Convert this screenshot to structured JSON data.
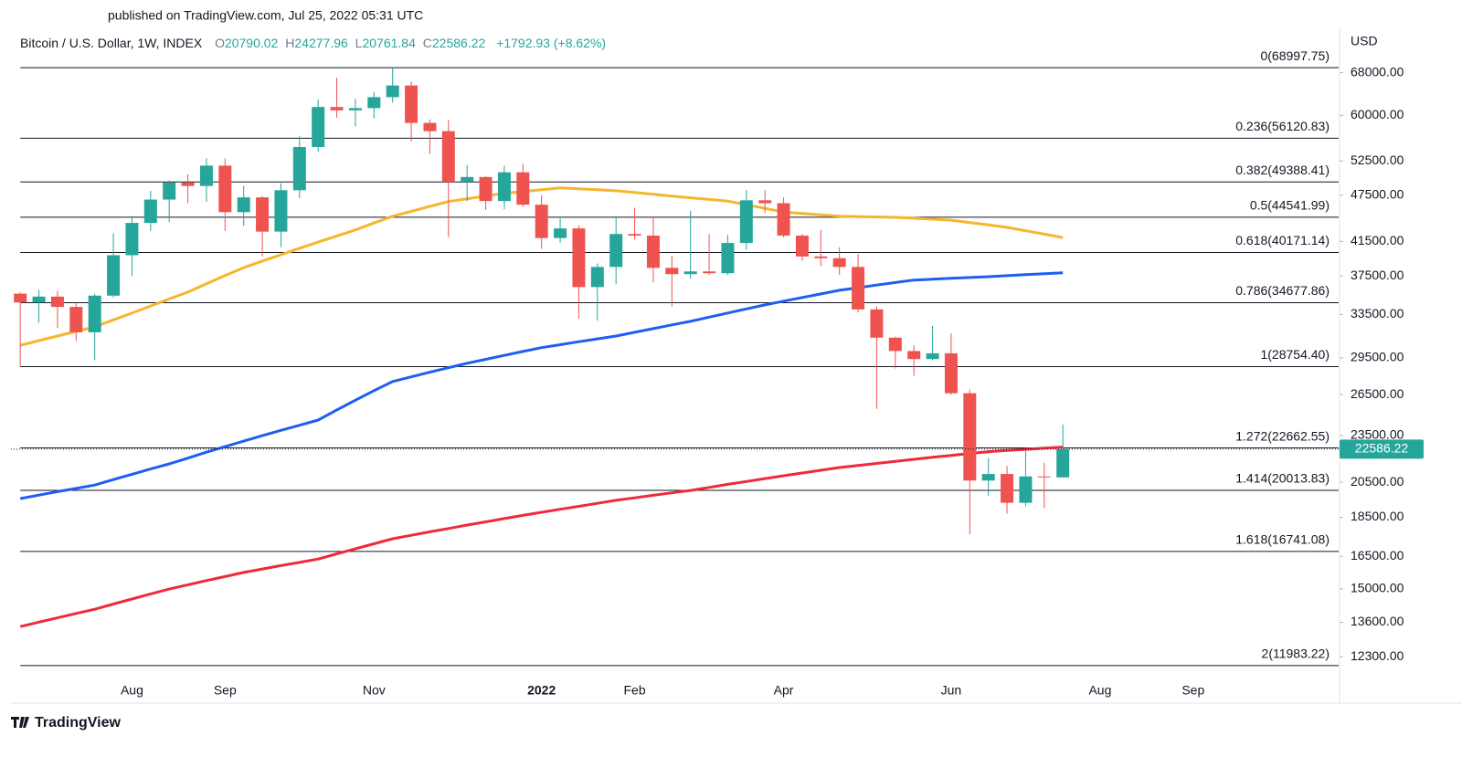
{
  "published": "published on TradingView.com, Jul 25, 2022 05:31 UTC",
  "footer": "TradingView",
  "chart_data": {
    "type": "candlestick",
    "title": "Bitcoin / U.S. Dollar, 1W, INDEX",
    "ohlc_keys": [
      "O",
      "H",
      "L",
      "C"
    ],
    "change_label": "+1792.93 (+8.62%)",
    "y_unit": "USD",
    "log_scale": true,
    "grid": false,
    "up_color": "#26a69a",
    "down_color": "#ef5350",
    "categories": [
      null,
      null,
      null,
      null,
      null,
      null,
      "Aug",
      null,
      null,
      null,
      null,
      "Sep",
      null,
      null,
      null,
      null,
      null,
      null,
      null,
      "Nov",
      null,
      null,
      null,
      null,
      null,
      null,
      null,
      null,
      "2022",
      null,
      null,
      null,
      null,
      "Feb",
      null,
      null,
      null,
      null,
      null,
      null,
      null,
      "Apr",
      null,
      null,
      null,
      null,
      null,
      null,
      null,
      null,
      "Jun",
      null,
      null,
      null,
      null,
      null,
      null,
      null,
      "Aug",
      null,
      null,
      null,
      null,
      "Sep",
      null,
      null,
      null,
      null,
      null,
      null,
      null
    ],
    "open": [
      35600,
      34700,
      35300,
      34250,
      31800,
      35400,
      39850,
      43800,
      46900,
      49300,
      48800,
      51800,
      45200,
      47200,
      42700,
      48200,
      54700,
      61500,
      60900,
      61300,
      63300,
      65500,
      58700,
      57300,
      49400,
      50100,
      46700,
      50800,
      46200,
      41900,
      43100,
      36300,
      38500,
      42400,
      42200,
      38400,
      37700,
      38000,
      37800,
      41300,
      46800,
      46400,
      42200,
      39700,
      39500,
      38500,
      34000,
      31300,
      30100,
      29400,
      29900,
      26600,
      20600,
      21000,
      19300,
      20850,
      20790.02,
      null,
      null,
      null,
      null,
      null,
      null,
      null,
      null,
      null,
      null,
      null,
      null,
      null,
      null
    ],
    "high": [
      35750,
      36000,
      35900,
      34600,
      35600,
      42500,
      44700,
      48100,
      49600,
      50500,
      52900,
      52900,
      48800,
      47400,
      49200,
      56500,
      62900,
      67000,
      63000,
      64300,
      69000,
      66300,
      59300,
      59200,
      51900,
      50200,
      51800,
      52100,
      47500,
      44400,
      43500,
      38900,
      44500,
      45800,
      44700,
      39800,
      45400,
      42400,
      42300,
      48200,
      48200,
      47200,
      42400,
      42900,
      40800,
      40000,
      34300,
      31400,
      30600,
      32400,
      31700,
      26900,
      22000,
      21500,
      22500,
      21700,
      24277.96,
      null,
      null,
      null,
      null,
      null,
      null,
      null,
      null,
      null,
      null,
      null,
      null,
      null,
      null
    ],
    "low": [
      28800,
      32700,
      32200,
      31000,
      29300,
      35200,
      37500,
      42800,
      43900,
      46400,
      46600,
      42800,
      43400,
      39700,
      40800,
      47100,
      53900,
      59600,
      58100,
      59500,
      62300,
      55600,
      53600,
      42000,
      46700,
      45500,
      45600,
      45900,
      40600,
      41300,
      33100,
      32900,
      36600,
      41700,
      36800,
      34300,
      37200,
      37600,
      37600,
      40500,
      45100,
      42000,
      39200,
      38600,
      37600,
      33700,
      25400,
      28600,
      28000,
      29300,
      26500,
      17600,
      19700,
      18700,
      19100,
      19000,
      20761.84,
      null,
      null,
      null,
      null,
      null,
      null,
      null,
      null,
      null,
      null,
      null,
      null,
      null,
      null
    ],
    "close": [
      34700,
      35300,
      34250,
      31800,
      35400,
      39850,
      43800,
      46900,
      49300,
      48800,
      51800,
      45200,
      47200,
      42700,
      48200,
      54700,
      61500,
      60900,
      61300,
      63300,
      65500,
      58700,
      57300,
      49400,
      50100,
      46700,
      50800,
      46200,
      41900,
      43100,
      36300,
      38500,
      42400,
      42200,
      38400,
      37700,
      38000,
      37800,
      41300,
      46800,
      46400,
      42200,
      39700,
      39500,
      38500,
      34000,
      31300,
      30100,
      29400,
      29900,
      26600,
      20600,
      21000,
      19300,
      20850,
      20800,
      22586.22,
      null,
      null,
      null,
      null,
      null,
      null,
      null,
      null,
      null,
      null,
      null,
      null,
      null,
      null
    ],
    "moving_averages": [
      {
        "color": "#f7b52c",
        "values": [
          30600,
          31030,
          31450,
          31880,
          32300,
          32970,
          33630,
          34340,
          35060,
          35770,
          36650,
          37540,
          38420,
          39170,
          39910,
          40660,
          41410,
          42160,
          42910,
          43790,
          44660,
          45320,
          45970,
          46630,
          47010,
          47380,
          47760,
          48010,
          48270,
          48520,
          48390,
          48260,
          48130,
          47880,
          47620,
          47370,
          47140,
          46920,
          46690,
          46200,
          45710,
          45220,
          45030,
          44850,
          44660,
          44610,
          44570,
          44520,
          44400,
          44280,
          44160,
          43850,
          43540,
          43230,
          42810,
          42380,
          41960,
          null,
          null,
          null,
          null,
          null,
          null,
          null,
          null,
          null,
          null,
          null,
          null,
          null,
          null
        ]
      },
      {
        "color": "#1e5ef0",
        "values": [
          19540,
          19740,
          19940,
          20130,
          20330,
          20660,
          20980,
          21310,
          21630,
          22000,
          22380,
          22750,
          23120,
          23490,
          23860,
          24220,
          24590,
          25330,
          26060,
          26800,
          27530,
          27910,
          28290,
          28660,
          29040,
          29380,
          29720,
          30060,
          30400,
          30660,
          30930,
          31190,
          31450,
          31800,
          32140,
          32490,
          32830,
          33240,
          33640,
          34050,
          34450,
          34830,
          35210,
          35580,
          35960,
          36230,
          36510,
          36780,
          37050,
          37140,
          37240,
          37330,
          37420,
          37530,
          37640,
          37740,
          37850,
          null,
          null,
          null,
          null,
          null,
          null,
          null,
          null,
          null,
          null,
          null,
          null,
          null,
          null
        ]
      },
      {
        "color": "#ee2a3b",
        "values": [
          13430,
          13610,
          13780,
          13960,
          14130,
          14350,
          14560,
          14780,
          14990,
          15180,
          15370,
          15550,
          15740,
          15900,
          16060,
          16210,
          16370,
          16620,
          16870,
          17120,
          17370,
          17550,
          17730,
          17900,
          18080,
          18250,
          18430,
          18600,
          18770,
          18940,
          19100,
          19270,
          19440,
          19580,
          19730,
          19870,
          20010,
          20190,
          20370,
          20540,
          20720,
          20890,
          21060,
          21230,
          21400,
          21530,
          21660,
          21790,
          21920,
          22050,
          22170,
          22300,
          22420,
          22500,
          22570,
          22650,
          22720,
          null,
          null,
          null,
          null,
          null,
          null,
          null,
          null,
          null,
          null,
          null,
          null,
          null,
          null
        ]
      }
    ],
    "fib_levels": [
      {
        "value": 68997.75,
        "label": "0(68997.75)"
      },
      {
        "value": 56120.83,
        "label": "0.236(56120.83)"
      },
      {
        "value": 49388.41,
        "label": "0.382(49388.41)"
      },
      {
        "value": 44541.99,
        "label": "0.5(44541.99)"
      },
      {
        "value": 40171.14,
        "label": "0.618(40171.14)"
      },
      {
        "value": 34677.86,
        "label": "0.786(34677.86)"
      },
      {
        "value": 28754.4,
        "label": "1(28754.40)"
      },
      {
        "value": 22662.55,
        "label": "1.272(22662.55)"
      },
      {
        "value": 20013.83,
        "label": "1.414(20013.83)"
      },
      {
        "value": 16741.08,
        "label": "1.618(16741.08)"
      },
      {
        "value": 11983.22,
        "label": "2(11983.22)"
      }
    ],
    "ylim": [
      11570,
      76000
    ],
    "yticks": [
      {
        "value": 68000,
        "label": "68000.00"
      },
      {
        "value": 60000,
        "label": "60000.00"
      },
      {
        "value": 52500,
        "label": "52500.00"
      },
      {
        "value": 47500,
        "label": "47500.00"
      },
      {
        "value": 41500,
        "label": "41500.00"
      },
      {
        "value": 37500,
        "label": "37500.00"
      },
      {
        "value": 33500,
        "label": "33500.00"
      },
      {
        "value": 29500,
        "label": "29500.00"
      },
      {
        "value": 26500,
        "label": "26500.00"
      },
      {
        "value": 23500,
        "label": "23500.00"
      },
      {
        "value": 20500,
        "label": "20500.00"
      },
      {
        "value": 18500,
        "label": "18500.00"
      },
      {
        "value": 16500,
        "label": "16500.00"
      },
      {
        "value": 15000,
        "label": "15000.00"
      },
      {
        "value": 13600,
        "label": "13600.00"
      },
      {
        "value": 12300,
        "label": "12300.00"
      }
    ]
  }
}
